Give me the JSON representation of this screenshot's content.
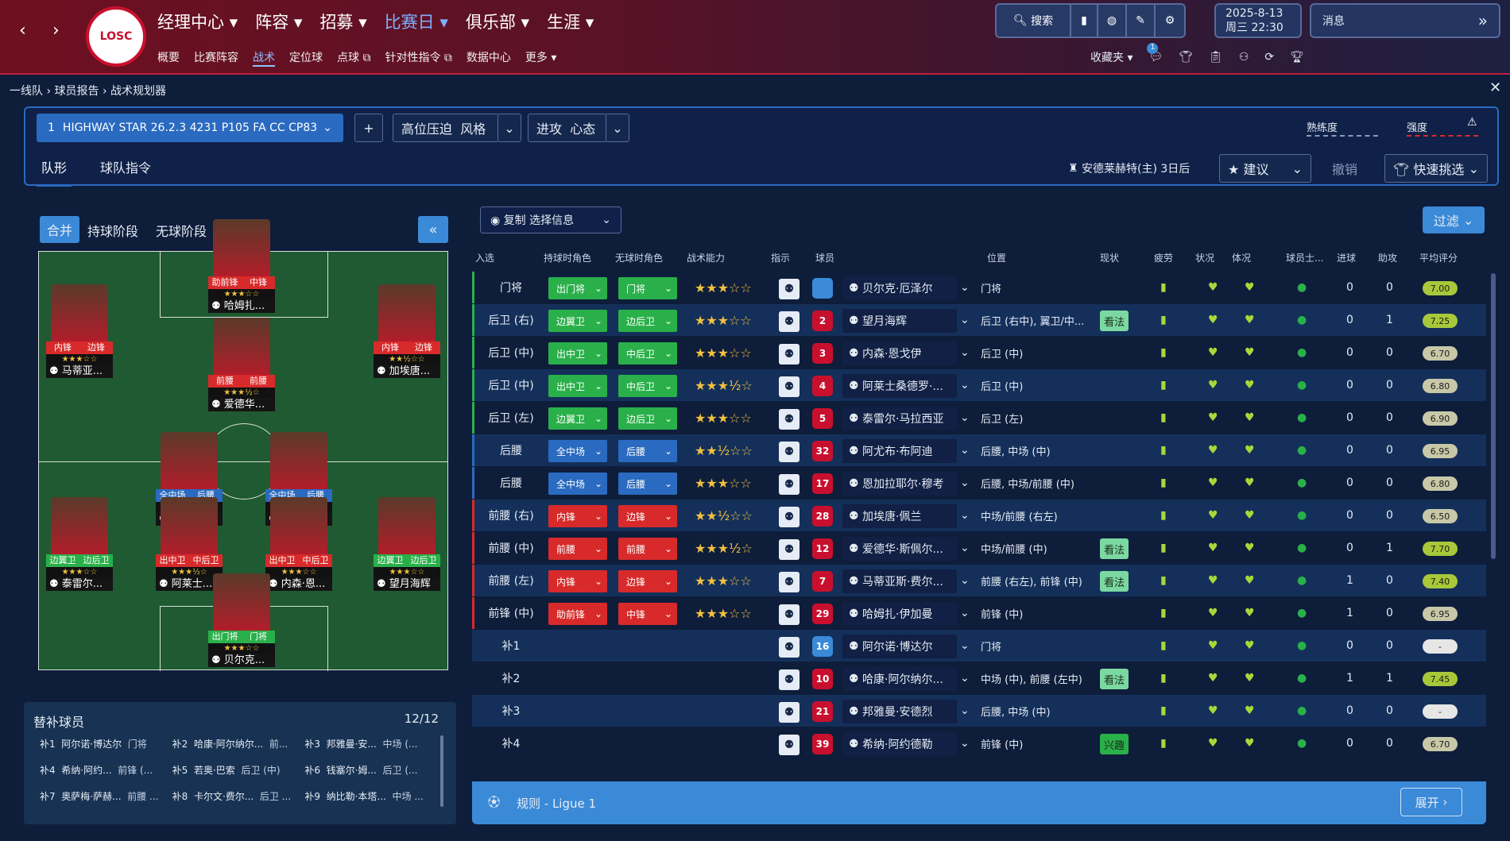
{
  "nav": {
    "main": [
      "经理中心",
      "阵容",
      "招募",
      "比赛日",
      "俱乐部",
      "生涯"
    ],
    "main_active": 3,
    "sub": [
      "概要",
      "比赛阵容",
      "战术",
      "定位球",
      "点球",
      "针对性指令",
      "数据中心",
      "更多"
    ],
    "sub_active": 2,
    "search": "搜索",
    "date": "2025-8-13",
    "weekday_time": "周三 22:30",
    "messages": "消息",
    "favorites": "收藏夹",
    "logo_text": "LOSC",
    "notif_count": "1"
  },
  "breadcrumb": [
    "一线队",
    "球员报告",
    "战术规划器"
  ],
  "tactic": {
    "index": "1",
    "name": "HIGHWAY STAR 26.2.3 4231 P105 FA CC CP83",
    "add": "+",
    "style_value": "高位压迫",
    "style_label": "风格",
    "mentality_value": "进攻",
    "mentality_label": "心态",
    "familiarity": "熟练度",
    "intensity": "强度",
    "tabs": [
      "队形",
      "球队指令"
    ],
    "assistant": "安德莱赫特(主) 3日后",
    "suggest": "建议",
    "undo": "撤销",
    "quick_pick": "快速挑选"
  },
  "pitch": {
    "phase_tabs": [
      "合并",
      "持球阶段",
      "无球阶段"
    ],
    "collapse": "«",
    "players": [
      {
        "name": "哈姆扎...",
        "r1": "助前锋",
        "r2": "中锋",
        "stars": "★★★☆☆"
      },
      {
        "name": "马蒂亚...",
        "r1": "内锋",
        "r2": "边锋",
        "stars": "★★★☆☆"
      },
      {
        "name": "爱德华...",
        "r1": "前腰",
        "r2": "前腰",
        "stars": "★★★½☆"
      },
      {
        "name": "加埃唐...",
        "r1": "内锋",
        "r2": "边锋",
        "stars": "★★½☆☆"
      },
      {
        "name": "恩加拉...",
        "r1": "全中场",
        "r2": "后腰",
        "stars": "★★★☆☆"
      },
      {
        "name": "阿尤布...",
        "r1": "全中场",
        "r2": "后腰",
        "stars": "★★½☆☆"
      },
      {
        "name": "泰雷尔...",
        "r1": "边翼卫",
        "r2": "边后卫",
        "stars": "★★★☆☆"
      },
      {
        "name": "阿莱士...",
        "r1": "出中卫",
        "r2": "中后卫",
        "stars": "★★★½☆"
      },
      {
        "name": "内森·恩...",
        "r1": "出中卫",
        "r2": "中后卫",
        "stars": "★★★☆☆"
      },
      {
        "name": "望月海辉",
        "r1": "边翼卫",
        "r2": "边后卫",
        "stars": "★★★☆☆"
      },
      {
        "name": "贝尔克...",
        "r1": "出门将",
        "r2": "门将",
        "stars": "★★★☆☆"
      }
    ]
  },
  "bench": {
    "title": "替补球员",
    "count": "12/12",
    "items": [
      {
        "slot": "补1",
        "name": "阿尔诺·博达尔",
        "pos": "门将"
      },
      {
        "slot": "补2",
        "name": "哈康·阿尔纳尔...",
        "pos": "前..."
      },
      {
        "slot": "补3",
        "name": "邦雅曼·安...",
        "pos": "中场 (..."
      },
      {
        "slot": "补4",
        "name": "希纳·阿约...",
        "pos": "前锋 (..."
      },
      {
        "slot": "补5",
        "name": "若奥·巴索",
        "pos": "后卫 (中)"
      },
      {
        "slot": "补6",
        "name": "钱塞尔·姆...",
        "pos": "后卫 (..."
      },
      {
        "slot": "补7",
        "name": "奥萨梅·萨赫...",
        "pos": "前腰 ..."
      },
      {
        "slot": "补8",
        "name": "卡尔文·费尔...",
        "pos": "后卫 ..."
      },
      {
        "slot": "补9",
        "name": "纳比勒·本塔...",
        "pos": "中场 ..."
      }
    ]
  },
  "table": {
    "copy_btn": "复制 选择信息",
    "filter_btn": "过滤",
    "headers": [
      "入选",
      "持球时角色",
      "无球时角色",
      "战术能力",
      "指示",
      "球员",
      "位置",
      "现状",
      "疲劳",
      "状况",
      "体况",
      "球员士...",
      "进球",
      "助攻",
      "平均评分"
    ],
    "rows": [
      {
        "sel": "门将",
        "r1": "出门将",
        "r2": "门将",
        "c1": "#2ab04a",
        "c2": "#2ab04a",
        "stars": "★★★☆☆",
        "num": "",
        "jc": "#3a8ad8",
        "name": "贝尔克·厄泽尔",
        "pos": "门将",
        "tag": "",
        "goals": "0",
        "assists": "0",
        "rating": "7.00",
        "rc": "#a8c83a",
        "bar": "#2ab04a"
      },
      {
        "sel": "后卫 (右)",
        "r1": "边翼卫",
        "r2": "边后卫",
        "c1": "#2ab04a",
        "c2": "#2ab04a",
        "stars": "★★★☆☆",
        "num": "2",
        "jc": "#c8102e",
        "name": "望月海辉",
        "pos": "后卫 (右中), 翼卫/中...",
        "tag": "看法",
        "goals": "0",
        "assists": "1",
        "rating": "7.25",
        "rc": "#a8c83a",
        "bar": "#2ab04a"
      },
      {
        "sel": "后卫 (中)",
        "r1": "出中卫",
        "r2": "中后卫",
        "c1": "#2ab04a",
        "c2": "#2ab04a",
        "stars": "★★★☆☆",
        "num": "3",
        "jc": "#c8102e",
        "name": "内森·恩戈伊",
        "pos": "后卫 (中)",
        "tag": "",
        "goals": "0",
        "assists": "0",
        "rating": "6.70",
        "rc": "#c8c8a8",
        "bar": "#2ab04a"
      },
      {
        "sel": "后卫 (中)",
        "r1": "出中卫",
        "r2": "中后卫",
        "c1": "#2ab04a",
        "c2": "#2ab04a",
        "stars": "★★★½☆",
        "num": "4",
        "jc": "#c8102e",
        "name": "阿莱士桑德罗·...",
        "pos": "后卫 (中)",
        "tag": "",
        "goals": "0",
        "assists": "0",
        "rating": "6.80",
        "rc": "#c8c8a8",
        "bar": "#2ab04a"
      },
      {
        "sel": "后卫 (左)",
        "r1": "边翼卫",
        "r2": "边后卫",
        "c1": "#2ab04a",
        "c2": "#2ab04a",
        "stars": "★★★☆☆",
        "num": "5",
        "jc": "#c8102e",
        "name": "泰雷尔·马拉西亚",
        "pos": "后卫 (左)",
        "tag": "",
        "goals": "0",
        "assists": "0",
        "rating": "6.90",
        "rc": "#c8c8a8",
        "bar": "#2ab04a"
      },
      {
        "sel": "后腰",
        "r1": "全中场",
        "r2": "后腰",
        "c1": "#2a6ac0",
        "c2": "#2a6ac0",
        "stars": "★★½☆☆",
        "num": "32",
        "jc": "#c8102e",
        "name": "阿尤布·布阿迪",
        "pos": "后腰, 中场 (中)",
        "tag": "",
        "goals": "0",
        "assists": "0",
        "rating": "6.95",
        "rc": "#c8c8a8",
        "bar": "#2a6ac0"
      },
      {
        "sel": "后腰",
        "r1": "全中场",
        "r2": "后腰",
        "c1": "#2a6ac0",
        "c2": "#2a6ac0",
        "stars": "★★★☆☆",
        "num": "17",
        "jc": "#c8102e",
        "name": "恩加拉耶尔·穆考",
        "pos": "后腰, 中场/前腰 (中)",
        "tag": "",
        "goals": "0",
        "assists": "0",
        "rating": "6.80",
        "rc": "#c8c8a8",
        "bar": "#2a6ac0"
      },
      {
        "sel": "前腰 (右)",
        "r1": "内锋",
        "r2": "边锋",
        "c1": "#d82a2a",
        "c2": "#d82a2a",
        "stars": "★★½☆☆",
        "num": "28",
        "jc": "#c8102e",
        "name": "加埃唐·佩兰",
        "pos": "中场/前腰 (右左)",
        "tag": "",
        "goals": "0",
        "assists": "0",
        "rating": "6.50",
        "rc": "#c8c8a8",
        "bar": "#d82a2a"
      },
      {
        "sel": "前腰 (中)",
        "r1": "前腰",
        "r2": "前腰",
        "c1": "#d82a2a",
        "c2": "#d82a2a",
        "stars": "★★★½☆",
        "num": "12",
        "jc": "#c8102e",
        "name": "爱德华·斯佩尔...",
        "pos": "中场/前腰 (中)",
        "tag": "看法",
        "goals": "0",
        "assists": "1",
        "rating": "7.70",
        "rc": "#a8c83a",
        "bar": "#d82a2a"
      },
      {
        "sel": "前腰 (左)",
        "r1": "内锋",
        "r2": "边锋",
        "c1": "#d82a2a",
        "c2": "#d82a2a",
        "stars": "★★★☆☆",
        "num": "7",
        "jc": "#c8102e",
        "name": "马蒂亚斯·费尔...",
        "pos": "前腰 (右左), 前锋 (中)",
        "tag": "看法",
        "goals": "1",
        "assists": "0",
        "rating": "7.40",
        "rc": "#a8c83a",
        "bar": "#d82a2a"
      },
      {
        "sel": "前锋 (中)",
        "r1": "助前锋",
        "r2": "中锋",
        "c1": "#d82a2a",
        "c2": "#d82a2a",
        "stars": "★★★☆☆",
        "num": "29",
        "jc": "#c8102e",
        "name": "哈姆扎·伊加曼",
        "pos": "前锋 (中)",
        "tag": "",
        "goals": "1",
        "assists": "0",
        "rating": "6.95",
        "rc": "#c8c8a8",
        "bar": "#d82a2a"
      },
      {
        "sel": "补1",
        "r1": "",
        "r2": "",
        "c1": "",
        "c2": "",
        "stars": "",
        "num": "16",
        "jc": "#3a8ad8",
        "name": "阿尔诺·博达尔",
        "pos": "门将",
        "tag": "",
        "goals": "0",
        "assists": "0",
        "rating": "-",
        "rc": "#e6e6e6",
        "bar": ""
      },
      {
        "sel": "补2",
        "r1": "",
        "r2": "",
        "c1": "",
        "c2": "",
        "stars": "",
        "num": "10",
        "jc": "#c8102e",
        "name": "哈康·阿尔纳尔...",
        "pos": "中场 (中), 前腰 (左中)",
        "tag": "看法",
        "goals": "1",
        "assists": "1",
        "rating": "7.45",
        "rc": "#a8c83a",
        "bar": ""
      },
      {
        "sel": "补3",
        "r1": "",
        "r2": "",
        "c1": "",
        "c2": "",
        "stars": "",
        "num": "21",
        "jc": "#c8102e",
        "name": "邦雅曼·安德烈",
        "pos": "后腰, 中场 (中)",
        "tag": "",
        "goals": "0",
        "assists": "0",
        "rating": "-",
        "rc": "#e6e6e6",
        "bar": ""
      },
      {
        "sel": "补4",
        "r1": "",
        "r2": "",
        "c1": "",
        "c2": "",
        "stars": "",
        "num": "39",
        "jc": "#c8102e",
        "name": "希纳·阿约德勒",
        "pos": "前锋 (中)",
        "tag": "兴趣",
        "goals": "0",
        "assists": "0",
        "rating": "6.70",
        "rc": "#c8c8a8",
        "bar": ""
      }
    ]
  },
  "footer": {
    "rule": "规则 - Ligue 1",
    "expand": "展开"
  }
}
